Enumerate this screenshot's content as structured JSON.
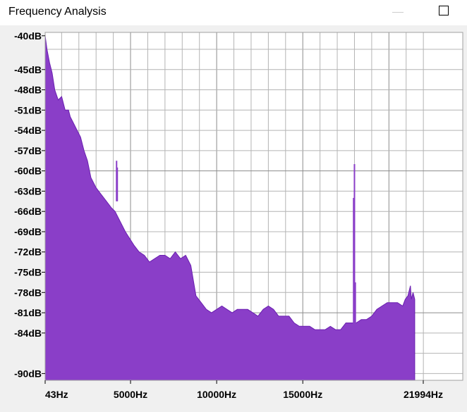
{
  "window": {
    "title": "Frequency Analysis",
    "minimize_icon": "minimize-icon",
    "maximize_icon": "maximize-icon"
  },
  "colors": {
    "fill": "#8a3ec8",
    "stroke": "#6a1fb0",
    "peak_line": "#8a3ec8",
    "grid": "#b4b4b4",
    "grid_major": "#8c8c8c",
    "plot_bg": "#ffffff"
  },
  "chart_data": {
    "type": "area",
    "title": "",
    "xlabel": "",
    "ylabel": "",
    "xlim": [
      43,
      21994
    ],
    "ylim": [
      -91,
      -39.5
    ],
    "y_ticks": [
      {
        "value": -40,
        "label": "-40dB"
      },
      {
        "value": -45,
        "label": "-45dB"
      },
      {
        "value": -48,
        "label": "-48dB"
      },
      {
        "value": -51,
        "label": "-51dB"
      },
      {
        "value": -54,
        "label": "-54dB"
      },
      {
        "value": -57,
        "label": "-57dB"
      },
      {
        "value": -60,
        "label": "-60dB"
      },
      {
        "value": -63,
        "label": "-63dB"
      },
      {
        "value": -66,
        "label": "-66dB"
      },
      {
        "value": -69,
        "label": "-69dB"
      },
      {
        "value": -72,
        "label": "-72dB"
      },
      {
        "value": -75,
        "label": "-75dB"
      },
      {
        "value": -78,
        "label": "-78dB"
      },
      {
        "value": -81,
        "label": "-81dB"
      },
      {
        "value": -84,
        "label": "-84dB"
      },
      {
        "value": -90,
        "label": "-90dB"
      }
    ],
    "x_ticks": [
      {
        "value": 43,
        "label": "43Hz"
      },
      {
        "value": 5000,
        "label": "5000Hz"
      },
      {
        "value": 10000,
        "label": "10000Hz"
      },
      {
        "value": 15000,
        "label": "15000Hz"
      },
      {
        "value": 21994,
        "label": "21994Hz"
      }
    ],
    "x_major_grid": [
      5000,
      10000,
      15000,
      20000
    ],
    "x_minor_grid": [
      1000,
      2000,
      3000,
      4000,
      6000,
      7000,
      8000,
      9000,
      11000,
      12000,
      13000,
      14000,
      16000,
      17000,
      18000,
      19000,
      21000,
      22000
    ],
    "y_grid": [
      -42,
      -45,
      -48,
      -51,
      -54,
      -57,
      -60,
      -63,
      -66,
      -69,
      -72,
      -75,
      -78,
      -81,
      -84,
      -87,
      -90
    ],
    "y_major_grid": [
      -60,
      -81
    ],
    "series": [
      {
        "x": [
          43,
          150,
          300,
          450,
          600,
          800,
          1000,
          1200,
          1400,
          1500,
          1700,
          1900,
          2100,
          2300,
          2500,
          2700,
          3000,
          3300,
          3600,
          3900,
          4100,
          4400,
          4700,
          4950,
          5200,
          5500,
          5800,
          6100,
          6400,
          6700,
          7000,
          7300,
          7600,
          7900,
          8200,
          8500,
          8800,
          9100,
          9400,
          9700,
          10000,
          10300,
          10600,
          10900,
          11200,
          11500,
          11800,
          12100,
          12400,
          12700,
          13000,
          13300,
          13600,
          13900,
          14200,
          14500,
          14800,
          15100,
          15400,
          15700,
          16000,
          16300,
          16600,
          16900,
          17200,
          17500,
          17800,
          18100,
          18400,
          18700,
          19000,
          19300,
          19600,
          19900,
          20200,
          20500,
          20800,
          20950,
          21100,
          21250,
          21300,
          21400,
          21500
        ],
        "values": [
          -40,
          -42,
          -44,
          -45.5,
          -48,
          -49.5,
          -49,
          -51,
          -51,
          -52,
          -53,
          -54,
          -55,
          -57,
          -58.5,
          -61,
          -62.5,
          -63.5,
          -64.5,
          -65.5,
          -66,
          -67.5,
          -69,
          -70,
          -71,
          -72,
          -72.5,
          -73.5,
          -73,
          -72.5,
          -72.5,
          -73,
          -72,
          -73,
          -72.5,
          -74,
          -78.5,
          -79.5,
          -80.5,
          -81,
          -80.5,
          -80,
          -80.5,
          -81,
          -80.5,
          -80.5,
          -80.5,
          -81,
          -81.5,
          -80.5,
          -80,
          -80.5,
          -81.5,
          -81.5,
          -81.5,
          -82.5,
          -83,
          -83,
          -83,
          -83.5,
          -83.5,
          -83.5,
          -83,
          -83.5,
          -83.5,
          -82.5,
          -82.5,
          -82.5,
          -82,
          -82,
          -81.5,
          -80.5,
          -80,
          -79.5,
          -79.5,
          -79.5,
          -80,
          -79,
          -78.5,
          -77,
          -79,
          -78,
          -79
        ]
      }
    ],
    "peaks": [
      {
        "x": 4190,
        "value": -58.5,
        "base": -64.5
      },
      {
        "x": 4230,
        "value": -59.5,
        "base": -64.5
      },
      {
        "x": 17950,
        "value": -64,
        "base": -83
      },
      {
        "x": 18000,
        "value": -59,
        "base": -83
      },
      {
        "x": 18050,
        "value": -76.5,
        "base": -83
      }
    ]
  }
}
